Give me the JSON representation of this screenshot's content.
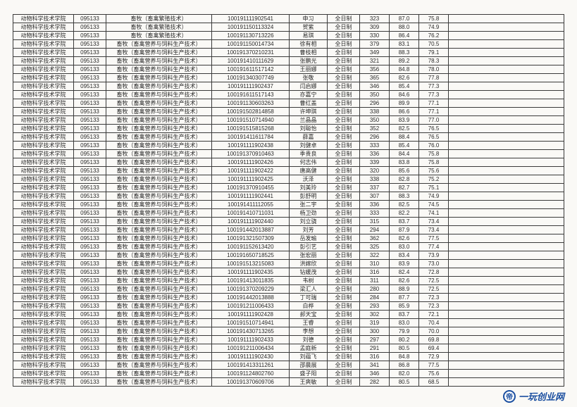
{
  "watermark": {
    "logo": "帝",
    "text": "一玩创业网"
  },
  "columns": [
    "dept",
    "code",
    "major",
    "exam",
    "name",
    "type",
    "s1",
    "s2",
    "s3"
  ],
  "dept": "动物科学技术学院",
  "code": "095133",
  "major_prefix": "畜牧",
  "major_variants": {
    "breed": "畜牧（畜禽繁殖技术）",
    "feed": "畜牧（畜禽营养与饲料生产技术）"
  },
  "type": "全日制",
  "rows": [
    {
      "major": "breed",
      "exam": "100191111902541",
      "name": "申习",
      "s1": 323,
      "s2": 87.0,
      "s3": 75.8
    },
    {
      "major": "breed",
      "exam": "100191150113324",
      "name": "贺紫",
      "s1": 309,
      "s2": 88.0,
      "s3": 74.9
    },
    {
      "major": "breed",
      "exam": "100191130713226",
      "name": "易琪",
      "s1": 330,
      "s2": 86.4,
      "s3": 76.2
    },
    {
      "major": "feed",
      "exam": "100191150014734",
      "name": "徐有相",
      "s1": 379,
      "s2": 83.1,
      "s3": 70.5
    },
    {
      "major": "feed",
      "exam": "100191370210231",
      "name": "曹枝相",
      "s1": 349,
      "s2": 88.3,
      "s3": 79.1
    },
    {
      "major": "feed",
      "exam": "100191410111629",
      "name": "张鹏光",
      "s1": 321,
      "s2": 89.2,
      "s3": 78.3
    },
    {
      "major": "feed",
      "exam": "100191611517142",
      "name": "王丽娜",
      "s1": 356,
      "s2": 84.8,
      "s3": 78.0
    },
    {
      "major": "feed",
      "exam": "100191340307749",
      "name": "张敬",
      "s1": 365,
      "s2": 82.6,
      "s3": 77.8
    },
    {
      "major": "feed",
      "exam": "100191111902437",
      "name": "闫启娜",
      "s1": 346,
      "s2": 85.4,
      "s3": 77.3
    },
    {
      "major": "feed",
      "exam": "100191611517143",
      "name": "亦嘉宁",
      "s1": 350,
      "s2": 84.6,
      "s3": 77.3
    },
    {
      "major": "feed",
      "exam": "100191130603263",
      "name": "曹红盖",
      "s1": 296,
      "s2": 89.9,
      "s3": 77.1
    },
    {
      "major": "feed",
      "exam": "100191502814858",
      "name": "许坤琪",
      "s1": 338,
      "s2": 86.6,
      "s3": 77.1
    },
    {
      "major": "feed",
      "exam": "100191510714940",
      "name": "兰晶晶",
      "s1": 350,
      "s2": 83.9,
      "s3": 77.0
    },
    {
      "major": "feed",
      "exam": "100191515815268",
      "name": "刘聪怡",
      "s1": 352,
      "s2": 82.5,
      "s3": 76.5
    },
    {
      "major": "feed",
      "exam": "100191411611784",
      "name": "薛嘉",
      "s1": 296,
      "s2": 88.4,
      "s3": 76.5
    },
    {
      "major": "feed",
      "exam": "100191111902438",
      "name": "刘健卓",
      "s1": 333,
      "s2": 85.4,
      "s3": 76.0
    },
    {
      "major": "feed",
      "exam": "100191370910463",
      "name": "季贵良",
      "s1": 336,
      "s2": 84.4,
      "s3": 75.8
    },
    {
      "major": "feed",
      "exam": "100191111902426",
      "name": "何志伟",
      "s1": 339,
      "s2": 83.8,
      "s3": 75.8
    },
    {
      "major": "feed",
      "exam": "100191111902422",
      "name": "唐高健",
      "s1": 320,
      "s2": 85.6,
      "s3": 75.6
    },
    {
      "major": "feed",
      "exam": "100191111902425",
      "name": "沃泽",
      "s1": 338,
      "s2": 82.8,
      "s3": 75.2
    },
    {
      "major": "feed",
      "exam": "100191370910455",
      "name": "刘美玲",
      "s1": 337,
      "s2": 82.7,
      "s3": 75.1
    },
    {
      "major": "feed",
      "exam": "100191111902441",
      "name": "彭舒明",
      "s1": 307,
      "s2": 88.3,
      "s3": 74.9
    },
    {
      "major": "feed",
      "exam": "100191411112055",
      "name": "张二宇",
      "s1": 336,
      "s2": 82.5,
      "s3": 74.5
    },
    {
      "major": "feed",
      "exam": "100191410711031",
      "name": "杨卫劲",
      "s1": 333,
      "s2": 82.2,
      "s3": 74.1
    },
    {
      "major": "feed",
      "exam": "100191111902440",
      "name": "刘立骁",
      "s1": 315,
      "s2": 83.7,
      "s3": 73.4
    },
    {
      "major": "feed",
      "exam": "100191442013887",
      "name": "刘芳",
      "s1": 294,
      "s2": 87.9,
      "s3": 73.4
    },
    {
      "major": "feed",
      "exam": "100191321507309",
      "name": "岳发瑜",
      "s1": 362,
      "s2": 82.6,
      "s3": 77.5
    },
    {
      "major": "feed",
      "exam": "100191152613420",
      "name": "彭引艺",
      "s1": 325,
      "s2": 83.0,
      "s3": 77.4
    },
    {
      "major": "feed",
      "exam": "100191650718525",
      "name": "张宏丽",
      "s1": 322,
      "s2": 83.4,
      "s3": 73.9
    },
    {
      "major": "feed",
      "exam": "100191513215083",
      "name": "洪嫁欣",
      "s1": 310,
      "s2": 83.9,
      "s3": 73.0
    },
    {
      "major": "feed",
      "exam": "100191111902435",
      "name": "钻媛茂",
      "s1": 316,
      "s2": 82.4,
      "s3": 72.8
    },
    {
      "major": "feed",
      "exam": "100191413011835",
      "name": "韦树",
      "s1": 311,
      "s2": 82.6,
      "s3": 72.5
    },
    {
      "major": "feed",
      "exam": "100191370209229",
      "name": "梁汇人",
      "s1": 280,
      "s2": 88.9,
      "s3": 72.5
    },
    {
      "major": "feed",
      "exam": "100191442013888",
      "name": "丁可瑞",
      "s1": 284,
      "s2": 87.7,
      "s3": 72.3
    },
    {
      "major": "feed",
      "exam": "100191211006433",
      "name": "白桦",
      "s1": 293,
      "s2": 85.9,
      "s3": 72.3
    },
    {
      "major": "feed",
      "exam": "100191111902428",
      "name": "郝天宝",
      "s1": 302,
      "s2": 83.7,
      "s3": 72.1
    },
    {
      "major": "feed",
      "exam": "100191510714941",
      "name": "王睿",
      "s1": 319,
      "s2": 83.0,
      "s3": 70.4
    },
    {
      "major": "feed",
      "exam": "100191430713265",
      "name": "李想",
      "s1": 300,
      "s2": 79.9,
      "s3": 70.0
    },
    {
      "major": "feed",
      "exam": "100191111902433",
      "name": "刘德",
      "s1": 297,
      "s2": 80.2,
      "s3": 69.8
    },
    {
      "major": "feed",
      "exam": "100191211006434",
      "name": "孟庭新",
      "s1": 291,
      "s2": 80.5,
      "s3": 69.4
    },
    {
      "major": "feed",
      "exam": "100191111902430",
      "name": "刘蕴飞",
      "s1": 316,
      "s2": 84.8,
      "s3": 72.9
    },
    {
      "major": "feed",
      "exam": "100191413311261",
      "name": "邵晨展",
      "s1": 341,
      "s2": 86.8,
      "s3": 77.5
    },
    {
      "major": "feed",
      "exam": "100191124802760",
      "name": "盛子阳",
      "s1": 346,
      "s2": 82.0,
      "s3": 75.6
    },
    {
      "major": "feed",
      "exam": "100191370609706",
      "name": "王爽敏",
      "s1": 282,
      "s2": 80.5,
      "s3": 68.5
    }
  ]
}
